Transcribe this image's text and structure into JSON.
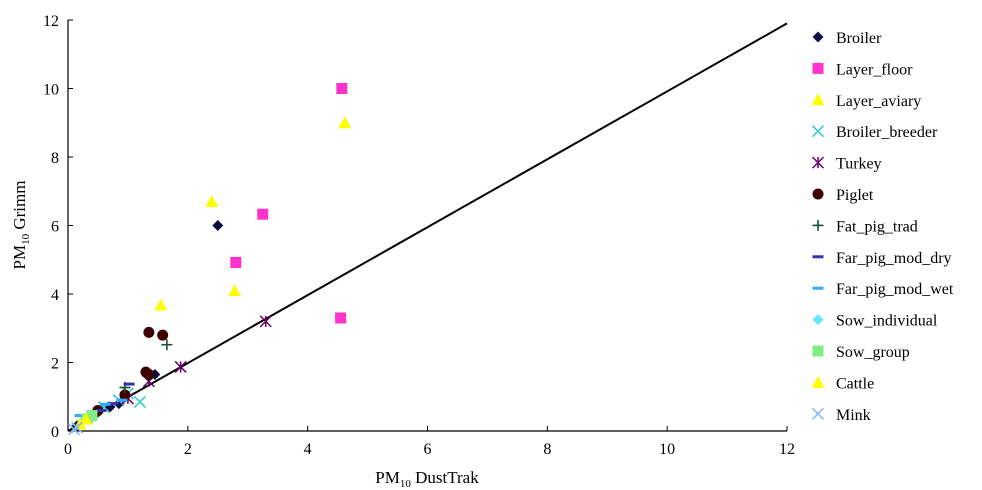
{
  "chart_data": {
    "type": "scatter",
    "xlabel": {
      "main": "PM",
      "sub": "10",
      "rest": " DustTrak"
    },
    "ylabel": {
      "main": "PM",
      "sub": "10",
      "rest": " Grimm"
    },
    "xlim": [
      0,
      12
    ],
    "ylim": [
      0,
      12
    ],
    "xticks": [
      "0",
      "2",
      "4",
      "6",
      "8",
      "10",
      "12"
    ],
    "yticks": [
      "0",
      "2",
      "4",
      "6",
      "8",
      "10",
      "12"
    ],
    "grid": false,
    "legend_position": "right",
    "reference_line": {
      "x": [
        0,
        12
      ],
      "y": [
        0,
        11.9
      ]
    },
    "series": [
      {
        "name": "Broiler",
        "marker": "diamond",
        "color": "#0d0d40",
        "points": [
          [
            2.5,
            6.0
          ],
          [
            1.45,
            1.65
          ],
          [
            0.85,
            0.8
          ],
          [
            0.7,
            0.7
          ],
          [
            0.5,
            0.55
          ],
          [
            0.15,
            0.15
          ]
        ]
      },
      {
        "name": "Layer_floor",
        "marker": "square",
        "color": "#ff33cc",
        "points": [
          [
            4.57,
            10.0
          ],
          [
            3.25,
            6.33
          ],
          [
            2.8,
            4.92
          ],
          [
            4.55,
            3.3
          ]
        ]
      },
      {
        "name": "Layer_aviary",
        "marker": "triangle",
        "color": "#ffff00",
        "points": [
          [
            4.62,
            9.0
          ],
          [
            2.4,
            6.7
          ],
          [
            2.78,
            4.1
          ],
          [
            1.55,
            3.68
          ]
        ]
      },
      {
        "name": "Broiler_breeder",
        "marker": "x",
        "color": "#33cccc",
        "points": [
          [
            1.2,
            0.85
          ],
          [
            1.0,
            1.1
          ],
          [
            0.85,
            0.9
          ],
          [
            0.6,
            0.7
          ]
        ]
      },
      {
        "name": "Turkey",
        "marker": "star",
        "color": "#660066",
        "points": [
          [
            3.3,
            3.2
          ],
          [
            1.88,
            1.87
          ],
          [
            1.35,
            1.45
          ],
          [
            1.0,
            0.95
          ]
        ]
      },
      {
        "name": "Piglet",
        "marker": "circle",
        "color": "#3d0000",
        "points": [
          [
            1.35,
            2.88
          ],
          [
            1.58,
            2.8
          ],
          [
            1.3,
            1.72
          ],
          [
            1.35,
            1.65
          ],
          [
            0.95,
            1.05
          ],
          [
            0.5,
            0.6
          ]
        ]
      },
      {
        "name": "Fat_pig_trad",
        "marker": "plus",
        "color": "#1a4d33",
        "points": [
          [
            1.65,
            2.52
          ],
          [
            0.95,
            1.27
          ],
          [
            0.4,
            0.4
          ]
        ]
      },
      {
        "name": "Far_pig_mod_dry",
        "marker": "dash",
        "color": "#3333aa",
        "points": [
          [
            1.02,
            1.37
          ],
          [
            0.75,
            0.8
          ],
          [
            0.55,
            0.6
          ]
        ]
      },
      {
        "name": "Far_pig_mod_wet",
        "marker": "dash",
        "color": "#33aaff",
        "points": [
          [
            0.2,
            0.45
          ],
          [
            0.62,
            0.78
          ],
          [
            0.9,
            0.9
          ],
          [
            0.3,
            0.3
          ]
        ]
      },
      {
        "name": "Sow_individual",
        "marker": "diamond",
        "color": "#66e6ff",
        "points": [
          [
            0.35,
            0.4
          ],
          [
            0.25,
            0.3
          ]
        ]
      },
      {
        "name": "Sow_group",
        "marker": "square",
        "color": "#80ee80",
        "points": [
          [
            0.4,
            0.45
          ],
          [
            0.32,
            0.35
          ]
        ]
      },
      {
        "name": "Cattle",
        "marker": "triangle",
        "color": "#ffff00",
        "points": [
          [
            0.3,
            0.35
          ],
          [
            0.2,
            0.2
          ]
        ]
      },
      {
        "name": "Mink",
        "marker": "x",
        "color": "#88bbee",
        "points": [
          [
            0.1,
            0.05
          ],
          [
            0.15,
            0.1
          ]
        ]
      }
    ]
  }
}
